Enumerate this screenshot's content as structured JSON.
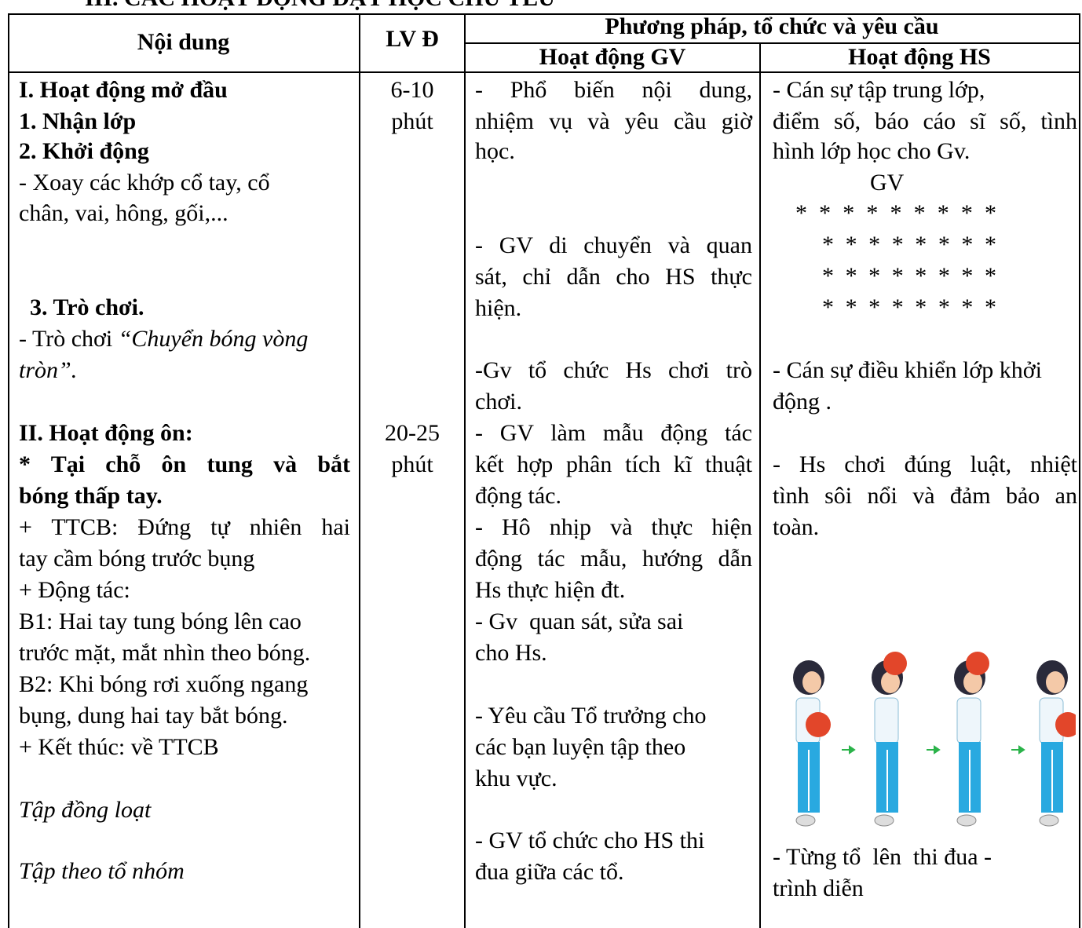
{
  "heading": "III. CÁC HOẠT ĐỘNG DẠY HỌC CHỦ YẾU",
  "table": {
    "headers": {
      "content": "Nội dung",
      "time": "LV Đ",
      "method": "Phương pháp, tổ chức và yêu cầu",
      "teacher": "Hoạt động GV",
      "student": "Hoạt động HS"
    },
    "content": [
      "I. Hoạt động mở đầu",
      "1. Nhận lớp",
      "2. Khởi động",
      "- Xoay các khớp cổ tay, cổ",
      "chân, vai, hông, gối,...",
      "3. Trò chơi.",
      [
        "- Trò chơi ",
        "“Chuyển bóng vòng"
      ],
      "tròn”.",
      "II. Hoạt động ôn:",
      "* Tại chỗ ôn tung và bắt",
      "bóng thấp tay.",
      "+ TTCB: Đứng tự nhiên hai",
      "tay cầm bóng trước bụng",
      "+ Động tác:",
      "B1: Hai tay tung bóng lên cao",
      "trước mặt, mắt nhìn theo bóng.",
      "B2: Khi bóng rơi xuống ngang",
      "bụng, dung hai tay bắt bóng.",
      "+ Kết thúc: về TTCB",
      "Tập đồng loạt",
      "Tập theo tổ nhóm"
    ],
    "time": [
      "6-10",
      "phút",
      "20-25",
      "phút"
    ],
    "teacher": [
      "- Phổ biến nội dung,",
      "nhiệm vụ và yêu cầu giờ",
      "học.",
      "- GV di chuyển và quan",
      "sát, chỉ dẫn cho HS thực",
      "hiện.",
      "-Gv tổ chức Hs chơi trò",
      "chơi.",
      "- GV làm mẫu động tác",
      "kết hợp phân tích kĩ thuật",
      "động tác.",
      "- Hô nhịp và thực hiện",
      "động tác mẫu, hướng dẫn",
      "Hs thực hiện đt.",
      "- Gv  quan sát, sửa sai",
      "cho Hs.",
      "- Yêu cầu Tổ trưởng cho",
      "các bạn luyện tập theo",
      "khu vực.",
      "- GV tổ chức cho HS thi",
      "đua giữa các tổ."
    ],
    "student": [
      "- Cán sự tập trung lớp,",
      "điểm số, báo cáo sĩ số, tình",
      "hình lớp học cho Gv.",
      "GV",
      "* * * * * * * * *",
      "* * * * * * * *",
      "* * * * * * * *",
      "* * * * * * * *",
      "- Cán sự điều khiển lớp khởi",
      "động .",
      "- Hs chơi đúng luật, nhiệt",
      "tình sôi nổi và đảm bảo an",
      "toàn.",
      "- Từng tổ  lên  thi đua -",
      "trình diễn"
    ]
  }
}
